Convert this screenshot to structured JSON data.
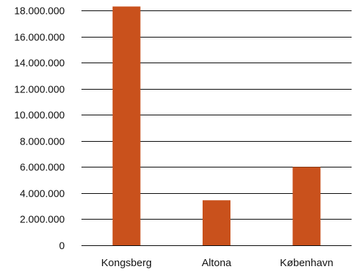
{
  "chart_data": {
    "type": "bar",
    "title": "",
    "xlabel": "",
    "ylabel": "",
    "categories": [
      "Kongsberg",
      "Altona",
      "København"
    ],
    "values": [
      18300000,
      3450000,
      6000000
    ],
    "ylim": [
      0,
      18000000
    ],
    "yticks": [
      0,
      2000000,
      4000000,
      6000000,
      8000000,
      10000000,
      12000000,
      14000000,
      16000000,
      18000000
    ],
    "ytick_labels": [
      "0",
      "2.000.000",
      "4.000.000",
      "6.000.000",
      "8.000.000",
      "10.000.000",
      "12.000.000",
      "14.000.000",
      "16.000.000",
      "18.000.000"
    ],
    "grid": true,
    "legend": "none",
    "bar_color": "#C9511C"
  }
}
